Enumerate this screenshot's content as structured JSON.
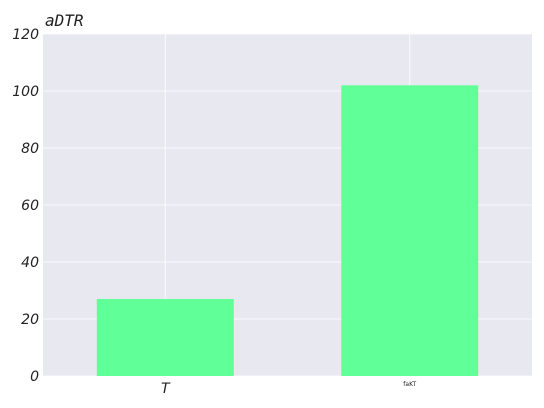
{
  "chart_data": {
    "type": "bar",
    "title": "aDTR",
    "categories": [
      "T",
      "faKT"
    ],
    "values": [
      27,
      102
    ],
    "ylim": [
      0,
      120
    ],
    "yticks": [
      0,
      20,
      40,
      60,
      80,
      100,
      120
    ],
    "grid": true,
    "xlabel": "",
    "ylabel": "",
    "colors": {
      "bar": "#60ff98",
      "plot_background": "#e8e8f1",
      "grid": "#ffffff"
    }
  }
}
